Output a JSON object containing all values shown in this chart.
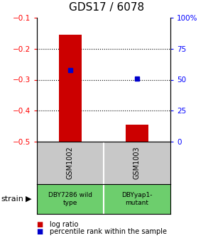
{
  "title": "GDS17 / 6078",
  "samples": [
    "GSM1002",
    "GSM1003"
  ],
  "bar_bottoms": [
    -0.5,
    -0.5
  ],
  "bar_tops": [
    -0.155,
    -0.445
  ],
  "bar_color": "#cc0000",
  "percentile_values": [
    -0.268,
    -0.297
  ],
  "percentile_color": "#0000cc",
  "ylim_left": [
    -0.5,
    -0.1
  ],
  "ylim_right": [
    0,
    100
  ],
  "yticks_left": [
    -0.1,
    -0.2,
    -0.3,
    -0.4,
    -0.5
  ],
  "yticks_right": [
    0,
    25,
    50,
    75,
    100
  ],
  "yticks_right_labels": [
    "0",
    "25",
    "50",
    "75",
    "100%"
  ],
  "strain_labels": [
    "DBY7286 wild\ntype",
    "DBYyap1-\nmutant"
  ],
  "strain_bg_color": "#6dce6d",
  "sample_bg_color": "#c8c8c8",
  "legend_items": [
    "log ratio",
    "percentile rank within the sample"
  ],
  "legend_colors": [
    "#cc0000",
    "#0000cc"
  ],
  "strain_arrow_label": "strain",
  "bar_width": 0.35,
  "grid_yticks": [
    -0.2,
    -0.3,
    -0.4
  ]
}
